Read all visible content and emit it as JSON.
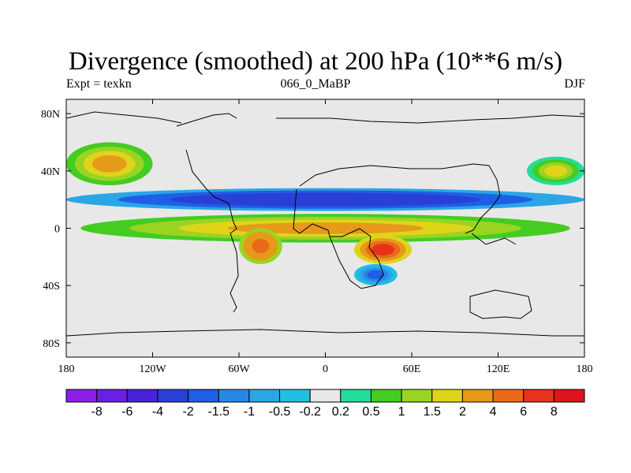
{
  "title": "Divergence (smoothed) at 200 hPa (10**6 m/s)",
  "subtitle_left": "Expt = texkn",
  "subtitle_center": "066_0_MaBP",
  "subtitle_right": "DJF",
  "chart_data": {
    "type": "heatmap",
    "variable": "Divergence (smoothed)",
    "level": "200 hPa",
    "units": "10**6 m/s",
    "xlim": [
      -180,
      180
    ],
    "ylim": [
      -90,
      90
    ],
    "x_ticks": [
      {
        "value": -180,
        "label": "180"
      },
      {
        "value": -120,
        "label": "120W"
      },
      {
        "value": -60,
        "label": "60W"
      },
      {
        "value": 0,
        "label": "0"
      },
      {
        "value": 60,
        "label": "60E"
      },
      {
        "value": 120,
        "label": "120E"
      },
      {
        "value": 180,
        "label": "180"
      }
    ],
    "y_ticks": [
      {
        "value": 80,
        "label": "80N"
      },
      {
        "value": 40,
        "label": "40N"
      },
      {
        "value": 0,
        "label": "0"
      },
      {
        "value": -40,
        "label": "40S"
      },
      {
        "value": -80,
        "label": "80S"
      }
    ],
    "colorbar": {
      "labels": [
        "-8",
        "-6",
        "-4",
        "-2",
        "-1.5",
        "-1",
        "-0.5",
        "-0.2",
        "0.2",
        "0.5",
        "1",
        "1.5",
        "2",
        "4",
        "6",
        "8"
      ],
      "colors": [
        "#8c1ee6",
        "#6b1fe0",
        "#4a22d8",
        "#2a3fd6",
        "#1f5ee6",
        "#2a86e6",
        "#2aa6e6",
        "#22c0e0",
        "#e8e8e8",
        "#22dd9a",
        "#44cc22",
        "#9ad422",
        "#e0d41a",
        "#e69a1a",
        "#ea6a1a",
        "#e8321c",
        "#e0141c"
      ]
    },
    "features": [
      {
        "lon_range": [
          -180,
          180
        ],
        "lat_range": [
          12,
          28
        ],
        "sign": "negative",
        "peak": -4
      },
      {
        "lon_range": [
          -170,
          170
        ],
        "lat_range": [
          -10,
          10
        ],
        "sign": "positive",
        "peak": 2
      },
      {
        "lon_range": [
          -60,
          -30
        ],
        "lat_range": [
          -25,
          0
        ],
        "sign": "positive",
        "peak": 4
      },
      {
        "lon_range": [
          20,
          60
        ],
        "lat_range": [
          -25,
          -5
        ],
        "sign": "positive",
        "peak": 6
      },
      {
        "lon_range": [
          -180,
          -120
        ],
        "lat_range": [
          30,
          60
        ],
        "sign": "positive",
        "peak": 2
      },
      {
        "lon_range": [
          140,
          180
        ],
        "lat_range": [
          30,
          50
        ],
        "sign": "positive",
        "peak": 1.5
      },
      {
        "lon_range": [
          20,
          50
        ],
        "lat_range": [
          -40,
          -25
        ],
        "sign": "negative",
        "peak": -2
      }
    ]
  }
}
